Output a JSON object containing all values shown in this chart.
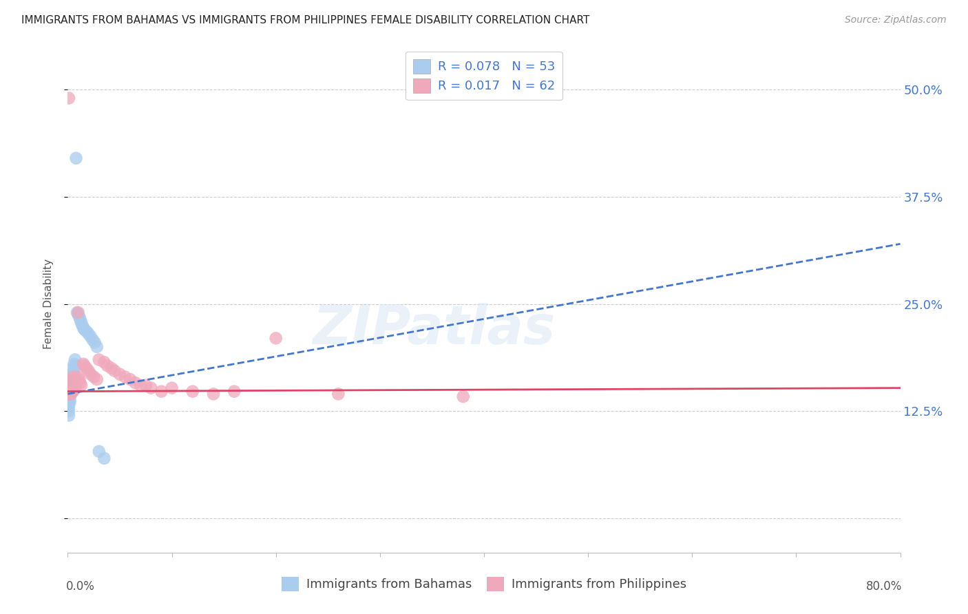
{
  "title": "IMMIGRANTS FROM BAHAMAS VS IMMIGRANTS FROM PHILIPPINES FEMALE DISABILITY CORRELATION CHART",
  "source": "Source: ZipAtlas.com",
  "ylabel": "Female Disability",
  "xlim": [
    0.0,
    0.8
  ],
  "ylim": [
    -0.04,
    0.54
  ],
  "r_bahamas": 0.078,
  "n_bahamas": 53,
  "r_philippines": 0.017,
  "n_philippines": 62,
  "blue_color": "#aaccee",
  "pink_color": "#f0a8bb",
  "blue_line_color": "#4477cc",
  "pink_line_color": "#dd4466",
  "legend_text_color": "#4477cc",
  "title_color": "#222222",
  "grid_color": "#cccccc",
  "watermark": "ZIPatlas",
  "bahamas_x": [
    0.001,
    0.001,
    0.001,
    0.001,
    0.001,
    0.001,
    0.001,
    0.001,
    0.001,
    0.001,
    0.002,
    0.002,
    0.002,
    0.002,
    0.002,
    0.002,
    0.002,
    0.002,
    0.003,
    0.003,
    0.003,
    0.003,
    0.003,
    0.003,
    0.004,
    0.004,
    0.004,
    0.004,
    0.005,
    0.005,
    0.005,
    0.006,
    0.006,
    0.006,
    0.007,
    0.007,
    0.008,
    0.009,
    0.01,
    0.011,
    0.012,
    0.013,
    0.014,
    0.015,
    0.016,
    0.018,
    0.02,
    0.022,
    0.024,
    0.026,
    0.028,
    0.03,
    0.035
  ],
  "bahamas_y": [
    0.155,
    0.15,
    0.148,
    0.145,
    0.142,
    0.14,
    0.135,
    0.13,
    0.125,
    0.12,
    0.158,
    0.155,
    0.152,
    0.148,
    0.145,
    0.142,
    0.138,
    0.135,
    0.165,
    0.162,
    0.158,
    0.152,
    0.148,
    0.145,
    0.168,
    0.162,
    0.158,
    0.152,
    0.175,
    0.168,
    0.162,
    0.18,
    0.172,
    0.165,
    0.185,
    0.178,
    0.42,
    0.24,
    0.238,
    0.235,
    0.232,
    0.228,
    0.225,
    0.222,
    0.22,
    0.218,
    0.215,
    0.212,
    0.208,
    0.205,
    0.2,
    0.078,
    0.07
  ],
  "philippines_x": [
    0.001,
    0.001,
    0.001,
    0.001,
    0.001,
    0.002,
    0.002,
    0.002,
    0.002,
    0.002,
    0.003,
    0.003,
    0.003,
    0.003,
    0.004,
    0.004,
    0.004,
    0.005,
    0.005,
    0.005,
    0.005,
    0.006,
    0.006,
    0.006,
    0.007,
    0.007,
    0.007,
    0.008,
    0.008,
    0.008,
    0.01,
    0.01,
    0.011,
    0.012,
    0.013,
    0.015,
    0.016,
    0.018,
    0.02,
    0.022,
    0.025,
    0.028,
    0.03,
    0.035,
    0.038,
    0.042,
    0.045,
    0.05,
    0.055,
    0.06,
    0.065,
    0.07,
    0.075,
    0.08,
    0.09,
    0.1,
    0.12,
    0.14,
    0.16,
    0.2,
    0.26,
    0.38
  ],
  "philippines_y": [
    0.49,
    0.155,
    0.152,
    0.148,
    0.145,
    0.158,
    0.155,
    0.152,
    0.148,
    0.145,
    0.158,
    0.155,
    0.15,
    0.145,
    0.16,
    0.155,
    0.148,
    0.165,
    0.16,
    0.155,
    0.148,
    0.162,
    0.155,
    0.15,
    0.162,
    0.158,
    0.152,
    0.162,
    0.158,
    0.152,
    0.24,
    0.165,
    0.162,
    0.158,
    0.155,
    0.18,
    0.178,
    0.175,
    0.172,
    0.168,
    0.165,
    0.162,
    0.185,
    0.182,
    0.178,
    0.175,
    0.172,
    0.168,
    0.165,
    0.162,
    0.158,
    0.155,
    0.155,
    0.152,
    0.148,
    0.152,
    0.148,
    0.145,
    0.148,
    0.21,
    0.145,
    0.142
  ],
  "blue_trend_x": [
    0.0,
    0.8
  ],
  "blue_trend_y": [
    0.145,
    0.32
  ],
  "pink_trend_x": [
    0.0,
    0.8
  ],
  "pink_trend_y": [
    0.148,
    0.152
  ],
  "ytick_pos": [
    0.0,
    0.125,
    0.25,
    0.375,
    0.5
  ],
  "ytick_labels": [
    "",
    "12.5%",
    "25.0%",
    "37.5%",
    "50.0%"
  ]
}
